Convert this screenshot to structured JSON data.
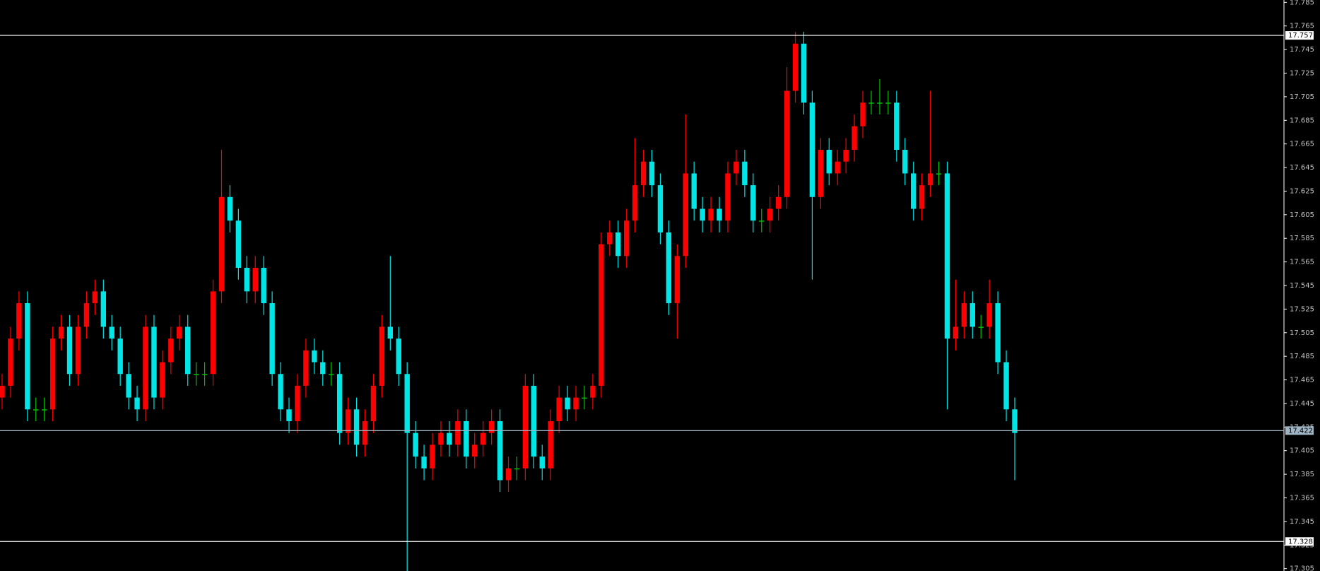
{
  "chart_data": {
    "type": "candlestick",
    "up_color": "#ff0000",
    "down_color": "#00e5e5",
    "flat_color": "#00c000",
    "axis_color": "#ffffff",
    "ylim": [
      17.303,
      17.787
    ],
    "yticks": [
      17.785,
      17.765,
      17.745,
      17.725,
      17.705,
      17.685,
      17.665,
      17.645,
      17.625,
      17.605,
      17.585,
      17.565,
      17.545,
      17.525,
      17.505,
      17.485,
      17.465,
      17.445,
      17.425,
      17.405,
      17.385,
      17.365,
      17.345,
      17.325,
      17.305
    ],
    "hlines": [
      {
        "value": 17.757,
        "color": "#ffffff"
      },
      {
        "value": 17.422,
        "color": "#9fb4c4"
      },
      {
        "value": 17.328,
        "color": "#ffffff"
      }
    ],
    "open": [
      17.45,
      17.46,
      17.5,
      17.53,
      17.44,
      17.44,
      17.44,
      17.5,
      17.51,
      17.47,
      17.51,
      17.53,
      17.54,
      17.51,
      17.5,
      17.47,
      17.45,
      17.44,
      17.51,
      17.45,
      17.48,
      17.5,
      17.51,
      17.47,
      17.47,
      17.47,
      17.54,
      17.62,
      17.6,
      17.56,
      17.54,
      17.56,
      17.53,
      17.47,
      17.44,
      17.43,
      17.46,
      17.49,
      17.48,
      17.47,
      17.47,
      17.42,
      17.44,
      17.41,
      17.43,
      17.46,
      17.51,
      17.5,
      17.47,
      17.42,
      17.4,
      17.39,
      17.41,
      17.42,
      17.41,
      17.43,
      17.4,
      17.41,
      17.42,
      17.43,
      17.38,
      17.39,
      17.39,
      17.46,
      17.4,
      17.39,
      17.43,
      17.45,
      17.44,
      17.45,
      17.45,
      17.46,
      17.58,
      17.59,
      17.57,
      17.6,
      17.63,
      17.65,
      17.63,
      17.59,
      17.53,
      17.57,
      17.64,
      17.61,
      17.6,
      17.61,
      17.6,
      17.64,
      17.65,
      17.63,
      17.6,
      17.6,
      17.61,
      17.62,
      17.71,
      17.75,
      17.7,
      17.62,
      17.66,
      17.64,
      17.65,
      17.66,
      17.68,
      17.7,
      17.7,
      17.7,
      17.7,
      17.66,
      17.64,
      17.61,
      17.63,
      17.64,
      17.64,
      17.5,
      17.51,
      17.53,
      17.51,
      17.51,
      17.53,
      17.48,
      17.44
    ],
    "high": [
      17.47,
      17.51,
      17.54,
      17.54,
      17.45,
      17.45,
      17.51,
      17.52,
      17.52,
      17.52,
      17.54,
      17.55,
      17.55,
      17.52,
      17.51,
      17.48,
      17.46,
      17.52,
      17.52,
      17.49,
      17.51,
      17.52,
      17.52,
      17.48,
      17.48,
      17.55,
      17.66,
      17.63,
      17.61,
      17.57,
      17.57,
      17.57,
      17.54,
      17.48,
      17.45,
      17.47,
      17.5,
      17.5,
      17.49,
      17.48,
      17.48,
      17.45,
      17.45,
      17.44,
      17.47,
      17.52,
      17.57,
      17.51,
      17.48,
      17.43,
      17.41,
      17.42,
      17.43,
      17.43,
      17.44,
      17.44,
      17.42,
      17.43,
      17.44,
      17.44,
      17.4,
      17.4,
      17.47,
      17.47,
      17.41,
      17.44,
      17.46,
      17.46,
      17.46,
      17.46,
      17.47,
      17.59,
      17.6,
      17.6,
      17.61,
      17.67,
      17.66,
      17.66,
      17.64,
      17.6,
      17.58,
      17.69,
      17.65,
      17.62,
      17.62,
      17.62,
      17.65,
      17.66,
      17.66,
      17.64,
      17.61,
      17.62,
      17.63,
      17.73,
      17.76,
      17.76,
      17.71,
      17.67,
      17.67,
      17.66,
      17.67,
      17.69,
      17.71,
      17.71,
      17.72,
      17.71,
      17.71,
      17.67,
      17.65,
      17.64,
      17.71,
      17.65,
      17.65,
      17.55,
      17.54,
      17.54,
      17.52,
      17.55,
      17.54,
      17.49,
      17.45
    ],
    "low": [
      17.44,
      17.45,
      17.49,
      17.43,
      17.43,
      17.43,
      17.43,
      17.49,
      17.46,
      17.46,
      17.5,
      17.52,
      17.5,
      17.49,
      17.46,
      17.44,
      17.43,
      17.43,
      17.44,
      17.44,
      17.47,
      17.49,
      17.46,
      17.46,
      17.46,
      17.46,
      17.53,
      17.59,
      17.55,
      17.53,
      17.53,
      17.52,
      17.46,
      17.43,
      17.42,
      17.42,
      17.45,
      17.47,
      17.46,
      17.46,
      17.41,
      17.41,
      17.4,
      17.4,
      17.42,
      17.45,
      17.49,
      17.46,
      17.3,
      17.39,
      17.38,
      17.38,
      17.4,
      17.4,
      17.4,
      17.39,
      17.39,
      17.4,
      17.41,
      17.37,
      17.37,
      17.38,
      17.38,
      17.39,
      17.38,
      17.38,
      17.42,
      17.43,
      17.43,
      17.44,
      17.44,
      17.45,
      17.57,
      17.56,
      17.56,
      17.59,
      17.62,
      17.62,
      17.58,
      17.52,
      17.5,
      17.56,
      17.6,
      17.59,
      17.59,
      17.59,
      17.59,
      17.63,
      17.62,
      17.59,
      17.59,
      17.59,
      17.6,
      17.61,
      17.7,
      17.69,
      17.55,
      17.61,
      17.63,
      17.63,
      17.64,
      17.65,
      17.67,
      17.69,
      17.69,
      17.69,
      17.65,
      17.63,
      17.6,
      17.6,
      17.62,
      17.63,
      17.44,
      17.49,
      17.5,
      17.5,
      17.5,
      17.5,
      17.47,
      17.43,
      17.38
    ],
    "close": [
      17.46,
      17.5,
      17.53,
      17.44,
      17.44,
      17.44,
      17.5,
      17.51,
      17.47,
      17.51,
      17.53,
      17.54,
      17.51,
      17.5,
      17.47,
      17.45,
      17.44,
      17.51,
      17.45,
      17.48,
      17.5,
      17.51,
      17.47,
      17.47,
      17.47,
      17.54,
      17.62,
      17.6,
      17.56,
      17.54,
      17.56,
      17.53,
      17.47,
      17.44,
      17.43,
      17.46,
      17.49,
      17.48,
      17.47,
      17.47,
      17.42,
      17.44,
      17.41,
      17.43,
      17.46,
      17.51,
      17.5,
      17.47,
      17.42,
      17.4,
      17.39,
      17.41,
      17.42,
      17.41,
      17.43,
      17.4,
      17.41,
      17.42,
      17.43,
      17.38,
      17.39,
      17.39,
      17.46,
      17.4,
      17.39,
      17.43,
      17.45,
      17.44,
      17.45,
      17.45,
      17.46,
      17.58,
      17.59,
      17.57,
      17.6,
      17.63,
      17.65,
      17.63,
      17.59,
      17.53,
      17.57,
      17.64,
      17.61,
      17.6,
      17.61,
      17.6,
      17.64,
      17.65,
      17.63,
      17.6,
      17.6,
      17.61,
      17.62,
      17.71,
      17.75,
      17.7,
      17.62,
      17.66,
      17.64,
      17.65,
      17.66,
      17.68,
      17.7,
      17.7,
      17.7,
      17.7,
      17.66,
      17.64,
      17.61,
      17.63,
      17.64,
      17.64,
      17.5,
      17.51,
      17.53,
      17.51,
      17.51,
      17.53,
      17.48,
      17.44,
      17.42
    ]
  }
}
